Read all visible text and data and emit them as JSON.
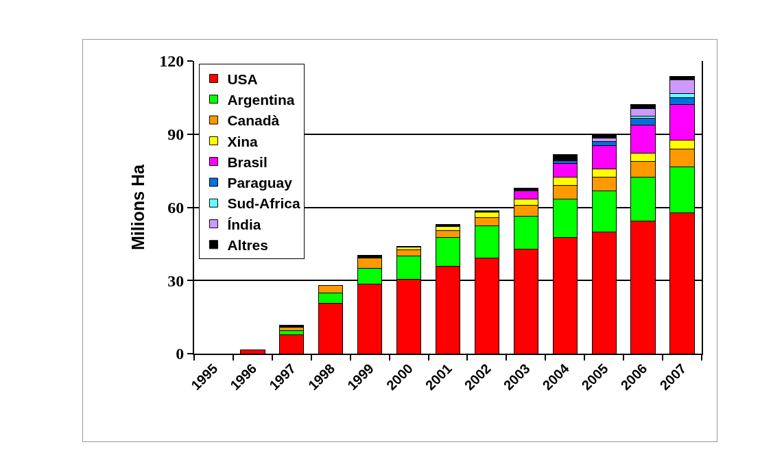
{
  "chart_data": {
    "type": "bar",
    "stacked": true,
    "ylabel": "Milions Ha",
    "categories": [
      "1995",
      "1996",
      "1997",
      "1998",
      "1999",
      "2000",
      "2001",
      "2002",
      "2003",
      "2004",
      "2005",
      "2006",
      "2007"
    ],
    "series": [
      {
        "name": "USA",
        "color": "#ff0000",
        "values": [
          null,
          1.5,
          7.8,
          20.7,
          28.4,
          30.6,
          35.8,
          39.1,
          42.9,
          47.6,
          49.8,
          54.5,
          57.8
        ]
      },
      {
        "name": "Argentina",
        "color": "#00ff00",
        "values": [
          null,
          null,
          1.6,
          4.3,
          6.6,
          9.5,
          11.7,
          13.3,
          13.5,
          15.8,
          16.9,
          18.0,
          18.8
        ]
      },
      {
        "name": "Canadà",
        "color": "#ff9900",
        "values": [
          null,
          null,
          1.3,
          2.9,
          4.1,
          2.5,
          3.0,
          3.3,
          4.4,
          5.7,
          5.8,
          6.3,
          7.2
        ]
      },
      {
        "name": "Xina",
        "color": "#ffff00",
        "values": [
          null,
          null,
          null,
          null,
          null,
          1.0,
          1.6,
          2.3,
          2.6,
          3.4,
          3.3,
          3.3,
          3.7
        ]
      },
      {
        "name": "Brasil",
        "color": "#ff00ff",
        "values": [
          null,
          null,
          null,
          null,
          null,
          null,
          null,
          null,
          3.3,
          5.4,
          9.4,
          11.5,
          14.6
        ]
      },
      {
        "name": "Paraguay",
        "color": "#0070dd",
        "values": [
          null,
          null,
          null,
          null,
          null,
          null,
          null,
          null,
          null,
          1.2,
          1.8,
          2.8,
          2.8
        ]
      },
      {
        "name": "Sud-Africa",
        "color": "#66ffff",
        "values": [
          null,
          null,
          null,
          null,
          null,
          null,
          null,
          null,
          null,
          null,
          null,
          0.9,
          1.8
        ]
      },
      {
        "name": "Índia",
        "color": "#cc99ff",
        "values": [
          null,
          null,
          null,
          null,
          null,
          null,
          null,
          null,
          null,
          null,
          1.3,
          3.2,
          5.5
        ]
      },
      {
        "name": "Altres",
        "color": "#000000",
        "values": [
          null,
          null,
          0.9,
          null,
          1.2,
          0.4,
          0.8,
          0.7,
          1.1,
          2.6,
          1.2,
          1.6,
          1.4
        ]
      }
    ],
    "ylim": [
      0,
      120
    ],
    "yticks": [
      0,
      30,
      60,
      90,
      120
    ],
    "grid": "y",
    "legend": "top left"
  }
}
